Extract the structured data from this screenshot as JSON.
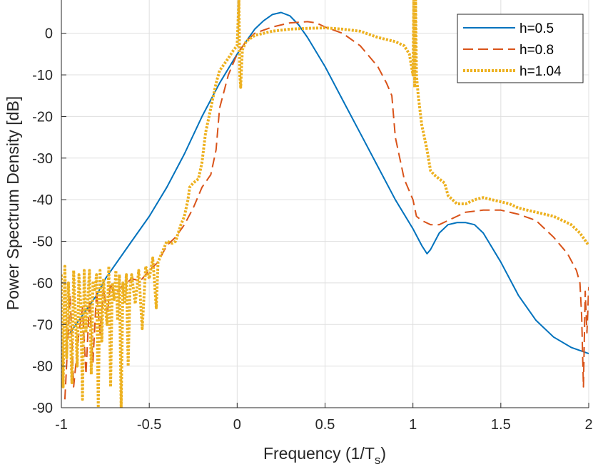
{
  "chart_data": {
    "type": "line",
    "title": "",
    "xlabel": "Frequency (1/T",
    "xlabel_subscript": "s",
    "xlabel_suffix": ")",
    "ylabel": "Power Spectrum Density [dB]",
    "xlim": [
      -1,
      2
    ],
    "ylim": [
      -90,
      8
    ],
    "xticks": [
      -1,
      -0.5,
      0,
      0.5,
      1,
      1.5,
      2
    ],
    "xtick_labels": [
      "-1",
      "-0.5",
      "0",
      "0.5",
      "1",
      "1.5",
      "2"
    ],
    "yticks": [
      -90,
      -80,
      -70,
      -60,
      -50,
      -40,
      -30,
      -20,
      -10,
      0
    ],
    "ytick_labels": [
      "-90",
      "-80",
      "-70",
      "-60",
      "-50",
      "-40",
      "-30",
      "-20",
      "-10",
      "0"
    ],
    "grid": true,
    "legend_position": "top-right",
    "series": [
      {
        "name": "h=0.5",
        "color": "#0072BD",
        "style": "solid",
        "x": [
          -0.95,
          -0.9,
          -0.8,
          -0.75,
          -0.7,
          -0.6,
          -0.5,
          -0.4,
          -0.3,
          -0.2,
          -0.1,
          0,
          0.05,
          0.1,
          0.15,
          0.2,
          0.25,
          0.3,
          0.35,
          0.4,
          0.5,
          0.6,
          0.7,
          0.8,
          0.9,
          1.0,
          1.05,
          1.08,
          1.1,
          1.15,
          1.2,
          1.25,
          1.3,
          1.35,
          1.4,
          1.5,
          1.6,
          1.7,
          1.8,
          1.9,
          2.0
        ],
        "y": [
          -72,
          -69,
          -63,
          -59,
          -56,
          -50,
          -44,
          -37,
          -29,
          -20,
          -12,
          -5,
          -2,
          1,
          3,
          4.5,
          5,
          4.2,
          2,
          -1,
          -8,
          -16,
          -24,
          -32,
          -40,
          -47,
          -51,
          -53,
          -52,
          -48,
          -46,
          -45.5,
          -45.5,
          -46,
          -48,
          -55,
          -63,
          -69,
          -73,
          -75.5,
          -77
        ]
      },
      {
        "name": "h=0.8",
        "color": "#D95319",
        "style": "dashed",
        "x": [
          -0.98,
          -0.95,
          -0.93,
          -0.9,
          -0.88,
          -0.86,
          -0.84,
          -0.82,
          -0.8,
          -0.78,
          -0.76,
          -0.74,
          -0.72,
          -0.7,
          -0.66,
          -0.6,
          -0.55,
          -0.5,
          -0.45,
          -0.4,
          -0.35,
          -0.3,
          -0.25,
          -0.2,
          -0.15,
          -0.12,
          -0.1,
          -0.05,
          0,
          0.05,
          0.1,
          0.2,
          0.3,
          0.4,
          0.45,
          0.5,
          0.6,
          0.7,
          0.8,
          0.85,
          0.88,
          0.9,
          0.95,
          1.0,
          1.02,
          1.05,
          1.1,
          1.15,
          1.2,
          1.25,
          1.3,
          1.4,
          1.5,
          1.6,
          1.7,
          1.8,
          1.88,
          1.93,
          1.95,
          1.96,
          1.97,
          1.98,
          1.99,
          2.0
        ],
        "y": [
          -88,
          -63,
          -85,
          -72,
          -66,
          -82,
          -64,
          -79,
          -62,
          -72,
          -61,
          -68,
          -60,
          -63,
          -61,
          -59,
          -59.5,
          -57,
          -55,
          -51,
          -49,
          -46,
          -42,
          -37,
          -34,
          -28,
          -18,
          -10,
          -5,
          -2,
          0,
          1.5,
          2.5,
          2.8,
          2.5,
          1.5,
          0,
          -3,
          -8,
          -12,
          -15,
          -25,
          -35,
          -40,
          -44,
          -45,
          -46,
          -46,
          -45,
          -44,
          -43,
          -42.5,
          -42.5,
          -43.5,
          -45,
          -49,
          -53,
          -57,
          -60,
          -68,
          -85,
          -62,
          -72,
          -61
        ]
      },
      {
        "name": "h=1.04",
        "color": "#EDB120",
        "style": "dotted",
        "x": [
          -1.0,
          -0.99,
          -0.98,
          -0.97,
          -0.96,
          -0.95,
          -0.94,
          -0.93,
          -0.92,
          -0.91,
          -0.9,
          -0.89,
          -0.88,
          -0.87,
          -0.86,
          -0.85,
          -0.84,
          -0.83,
          -0.82,
          -0.81,
          -0.8,
          -0.79,
          -0.78,
          -0.77,
          -0.76,
          -0.75,
          -0.74,
          -0.73,
          -0.72,
          -0.71,
          -0.7,
          -0.69,
          -0.68,
          -0.67,
          -0.66,
          -0.65,
          -0.64,
          -0.63,
          -0.62,
          -0.61,
          -0.6,
          -0.58,
          -0.56,
          -0.54,
          -0.52,
          -0.5,
          -0.48,
          -0.46,
          -0.45,
          -0.44,
          -0.42,
          -0.4,
          -0.37,
          -0.35,
          -0.32,
          -0.3,
          -0.28,
          -0.27,
          -0.25,
          -0.22,
          -0.2,
          -0.18,
          -0.15,
          -0.12,
          -0.1,
          -0.05,
          -0.02,
          0,
          0.01,
          0.015,
          0.02,
          0.025,
          0.03,
          0.05,
          0.1,
          0.2,
          0.3,
          0.4,
          0.5,
          0.6,
          0.7,
          0.8,
          0.9,
          0.95,
          0.98,
          1.0,
          1.005,
          1.01,
          1.015,
          1.02,
          1.03,
          1.05,
          1.08,
          1.1,
          1.12,
          1.15,
          1.18,
          1.2,
          1.25,
          1.3,
          1.35,
          1.4,
          1.45,
          1.5,
          1.55,
          1.6,
          1.65,
          1.7,
          1.75,
          1.8,
          1.85,
          1.9,
          1.95,
          2.0
        ],
        "y": [
          -58,
          -85,
          -56,
          -78,
          -60,
          -70,
          -84,
          -57,
          -68,
          -80,
          -58,
          -65,
          -88,
          -57,
          -72,
          -64,
          -57,
          -82,
          -60,
          -62,
          -58,
          -90,
          -57,
          -74,
          -59,
          -66,
          -70,
          -56,
          -85,
          -60,
          -64,
          -57,
          -69,
          -58,
          -90,
          -60,
          -65,
          -58,
          -80,
          -62,
          -58,
          -65,
          -57,
          -71,
          -56,
          -59,
          -54,
          -66,
          -55,
          -54,
          -52,
          -50,
          -50.5,
          -50,
          -46,
          -44,
          -40,
          -37,
          -36,
          -35,
          -31,
          -24,
          -18,
          -12,
          -9,
          -6,
          -4,
          -3,
          8,
          -10,
          -13,
          -8,
          -4,
          -2,
          -0.5,
          0.5,
          1,
          1.2,
          1.3,
          1,
          0.5,
          -1,
          -2,
          -3,
          -5,
          -10,
          8,
          -13,
          8,
          -10,
          -15,
          -22,
          -28,
          -33,
          -34,
          -35,
          -36,
          -39,
          -41,
          -41,
          -40,
          -39.5,
          -40,
          -40.5,
          -41,
          -42,
          -42.5,
          -43,
          -43.5,
          -44,
          -45,
          -46,
          -48,
          -51
        ]
      }
    ]
  }
}
